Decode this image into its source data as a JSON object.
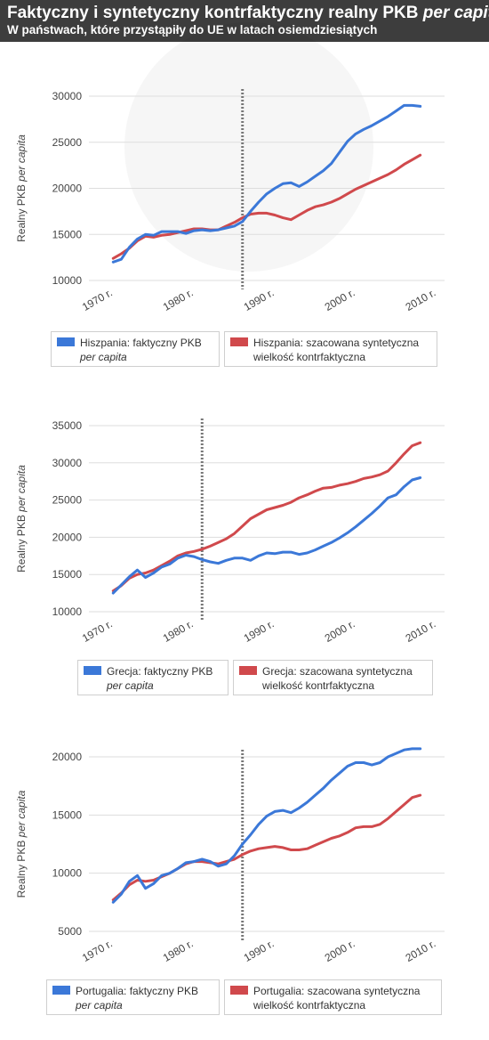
{
  "header": {
    "title_main": "Faktyczny i syntetyczny kontrfaktyczny realny PKB ",
    "title_italic": "per capita",
    "subtitle": "W państwach, które przystąpiły do UE w latach osiemdziesiątych"
  },
  "colors": {
    "actual": "#3b78d8",
    "synthetic": "#d0494c",
    "header_bg": "#3d3d3d",
    "grid": "#dddddd",
    "divider": "#777777"
  },
  "chart_data": [
    {
      "type": "line",
      "ylabel_main": "Realny PKB ",
      "ylabel_italic": "per capita",
      "x_ticks": [
        "1970 r.",
        "1980 r.",
        "1990 r.",
        "2000 r.",
        "2010 r."
      ],
      "y_ticks": [
        "10000",
        "15000",
        "20000",
        "25000",
        "30000"
      ],
      "xlim": [
        1967,
        2011
      ],
      "ylim": [
        10000,
        30000
      ],
      "grid": true,
      "vline_year": 1986,
      "x": [
        1970,
        1971,
        1972,
        1973,
        1974,
        1975,
        1976,
        1977,
        1978,
        1979,
        1980,
        1981,
        1982,
        1983,
        1984,
        1985,
        1986,
        1987,
        1988,
        1989,
        1990,
        1991,
        1992,
        1993,
        1994,
        1995,
        1996,
        1997,
        1998,
        1999,
        2000,
        2001,
        2002,
        2003,
        2004,
        2005,
        2006,
        2007,
        2008
      ],
      "legend": [
        {
          "series": 0,
          "line1": "Hiszpania: faktyczny PKB",
          "line2": "per capita",
          "italic": true
        },
        {
          "series": 1,
          "line1": "Hiszpania: szacowana syntetyczna",
          "line2": "wielkość kontrfaktyczna",
          "italic": false
        }
      ],
      "series": [
        {
          "values": [
            12000,
            12300,
            13600,
            14500,
            15000,
            14900,
            15300,
            15300,
            15300,
            15100,
            15400,
            15500,
            15400,
            15500,
            15700,
            15900,
            16400,
            17500,
            18500,
            19400,
            20000,
            20500,
            20600,
            20200,
            20700,
            21300,
            21900,
            22700,
            23900,
            25100,
            25900,
            26400,
            26800,
            27300,
            27800,
            28400,
            29000,
            29000,
            28900
          ]
        },
        {
          "values": [
            12400,
            12900,
            13500,
            14300,
            14800,
            14700,
            14900,
            15000,
            15200,
            15400,
            15600,
            15600,
            15500,
            15500,
            15900,
            16300,
            16800,
            17200,
            17300,
            17300,
            17100,
            16800,
            16600,
            17100,
            17600,
            18000,
            18200,
            18500,
            18900,
            19400,
            19900,
            20300,
            20700,
            21100,
            21500,
            22000,
            22600,
            23100,
            23600
          ]
        }
      ]
    },
    {
      "type": "line",
      "ylabel_main": "Realny PKB ",
      "ylabel_italic": "per capita",
      "x_ticks": [
        "1970 r.",
        "1980 r.",
        "1990 r.",
        "2000 r.",
        "2010 r."
      ],
      "y_ticks": [
        "10000",
        "15000",
        "20000",
        "25000",
        "30000",
        "35000"
      ],
      "xlim": [
        1967,
        2011
      ],
      "ylim": [
        10000,
        35000
      ],
      "grid": true,
      "vline_year": 1981,
      "x": [
        1970,
        1971,
        1972,
        1973,
        1974,
        1975,
        1976,
        1977,
        1978,
        1979,
        1980,
        1981,
        1982,
        1983,
        1984,
        1985,
        1986,
        1987,
        1988,
        1989,
        1990,
        1991,
        1992,
        1993,
        1994,
        1995,
        1996,
        1997,
        1998,
        1999,
        2000,
        2001,
        2002,
        2003,
        2004,
        2005,
        2006,
        2007,
        2008
      ],
      "legend": [
        {
          "series": 0,
          "line1": "Grecja: faktyczny PKB",
          "line2": "per capita",
          "italic": true
        },
        {
          "series": 1,
          "line1": "Grecja: szacowana syntetyczna",
          "line2": "wielkość kontrfaktyczna",
          "italic": false
        }
      ],
      "series": [
        {
          "values": [
            12500,
            13600,
            14700,
            15600,
            14600,
            15200,
            16000,
            16400,
            17200,
            17600,
            17400,
            17000,
            16700,
            16500,
            16900,
            17200,
            17200,
            16900,
            17500,
            17900,
            17800,
            18000,
            18000,
            17700,
            17900,
            18300,
            18800,
            19300,
            19900,
            20600,
            21400,
            22300,
            23200,
            24200,
            25300,
            25700,
            26800,
            27700,
            28000
          ]
        },
        {
          "values": [
            12800,
            13500,
            14500,
            15000,
            15200,
            15600,
            16200,
            16800,
            17500,
            17900,
            18100,
            18400,
            18800,
            19300,
            19800,
            20500,
            21500,
            22500,
            23100,
            23700,
            24000,
            24300,
            24700,
            25300,
            25700,
            26200,
            26600,
            26700,
            27000,
            27200,
            27500,
            27900,
            28100,
            28400,
            28900,
            30000,
            31200,
            32300,
            32700
          ]
        }
      ]
    },
    {
      "type": "line",
      "ylabel_main": "Realny PKB ",
      "ylabel_italic": "per capita",
      "x_ticks": [
        "1970 r.",
        "1980 r.",
        "1990 r.",
        "2000 r.",
        "2010 r."
      ],
      "y_ticks": [
        "5000",
        "10000",
        "15000",
        "20000"
      ],
      "xlim": [
        1967,
        2011
      ],
      "ylim": [
        5000,
        20000
      ],
      "grid": true,
      "vline_year": 1986,
      "x": [
        1970,
        1971,
        1972,
        1973,
        1974,
        1975,
        1976,
        1977,
        1978,
        1979,
        1980,
        1981,
        1982,
        1983,
        1984,
        1985,
        1986,
        1987,
        1988,
        1989,
        1990,
        1991,
        1992,
        1993,
        1994,
        1995,
        1996,
        1997,
        1998,
        1999,
        2000,
        2001,
        2002,
        2003,
        2004,
        2005,
        2006,
        2007,
        2008
      ],
      "legend": [
        {
          "series": 0,
          "line1": "Portugalia: faktyczny PKB",
          "line2": "per capita",
          "italic": true
        },
        {
          "series": 1,
          "line1": "Portugalia: szacowana syntetyczna",
          "line2": "wielkość kontrfaktyczna",
          "italic": false
        }
      ],
      "series": [
        {
          "values": [
            7500,
            8200,
            9300,
            9800,
            8700,
            9100,
            9800,
            10000,
            10400,
            10900,
            11000,
            11200,
            11000,
            10600,
            10800,
            11500,
            12500,
            13300,
            14200,
            14900,
            15300,
            15400,
            15200,
            15600,
            16100,
            16700,
            17300,
            18000,
            18600,
            19200,
            19500,
            19500,
            19300,
            19500,
            20000,
            20300,
            20600,
            20700,
            20700
          ]
        },
        {
          "values": [
            7700,
            8300,
            9000,
            9400,
            9300,
            9400,
            9700,
            10000,
            10400,
            10800,
            11000,
            11000,
            10900,
            10800,
            11000,
            11200,
            11600,
            11900,
            12100,
            12200,
            12300,
            12200,
            12000,
            12000,
            12100,
            12400,
            12700,
            13000,
            13200,
            13500,
            13900,
            14000,
            14000,
            14200,
            14700,
            15300,
            15900,
            16500,
            16700
          ]
        }
      ]
    }
  ]
}
